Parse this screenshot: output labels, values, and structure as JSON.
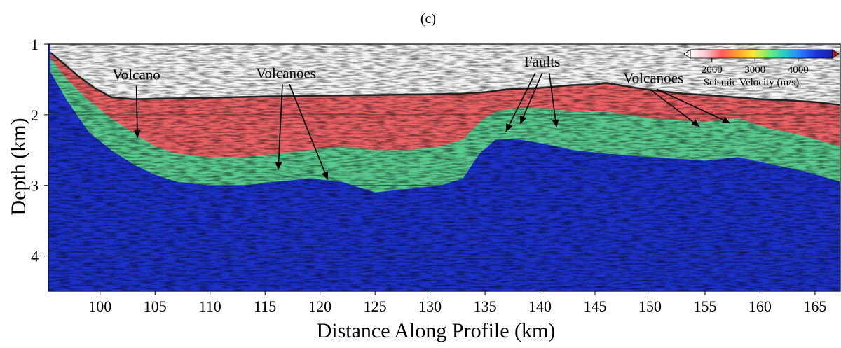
{
  "panel_label": "(c)",
  "chart_data": {
    "type": "heatmap",
    "title": "",
    "xlabel": "Distance Along Profile (km)",
    "ylabel": "Depth (km)",
    "xlim": [
      95.3,
      167.3
    ],
    "ylim": [
      4.5,
      1.0
    ],
    "x_ticks": [
      100,
      105,
      110,
      115,
      120,
      125,
      130,
      135,
      140,
      145,
      150,
      155,
      160,
      165
    ],
    "y_ticks": [
      1,
      2,
      3,
      4
    ],
    "gridlines_y": [
      2,
      3,
      4
    ],
    "grid": "horizontal lines at depth ticks",
    "colorbar": {
      "label": "Seismic Velocity (m/s)",
      "ticks": [
        2000,
        3000,
        4000
      ],
      "range": [
        1500,
        4800
      ],
      "colors": [
        "#ffffff",
        "#f7c6d2",
        "#ff5a5a",
        "#ffa030",
        "#ffe63c",
        "#6cf07a",
        "#28c8c8",
        "#2c78ff",
        "#1e32d2",
        "#141eaa"
      ],
      "placement": "top-right"
    },
    "seafloor_profile": {
      "x": [
        95.5,
        96.5,
        98,
        99.5,
        101,
        103,
        106,
        110,
        115,
        120,
        125,
        130,
        133,
        135,
        137,
        140,
        143,
        145,
        146,
        148,
        150,
        153,
        156,
        160,
        163,
        165,
        167.3
      ],
      "depth": [
        1.12,
        1.25,
        1.45,
        1.62,
        1.75,
        1.78,
        1.77,
        1.76,
        1.74,
        1.73,
        1.72,
        1.71,
        1.7,
        1.68,
        1.64,
        1.62,
        1.58,
        1.57,
        1.55,
        1.6,
        1.65,
        1.7,
        1.73,
        1.78,
        1.8,
        1.82,
        1.86
      ]
    },
    "velocity_boundaries": {
      "x": [
        95.5,
        97,
        99,
        101,
        103,
        105,
        107,
        110,
        113,
        116,
        119,
        122,
        125,
        128,
        131,
        133,
        134.5,
        136,
        138,
        140,
        143,
        146,
        150,
        155,
        158,
        161,
        164,
        167.3
      ],
      "v2500_depth": [
        1.2,
        1.5,
        1.8,
        2.05,
        2.25,
        2.45,
        2.55,
        2.6,
        2.6,
        2.55,
        2.5,
        2.45,
        2.5,
        2.5,
        2.45,
        2.35,
        2.1,
        1.95,
        1.9,
        1.9,
        1.95,
        1.95,
        2.05,
        2.1,
        2.05,
        2.2,
        2.3,
        2.45
      ],
      "v3500_depth": [
        1.4,
        1.8,
        2.25,
        2.5,
        2.7,
        2.85,
        2.95,
        3.0,
        3.0,
        2.95,
        2.9,
        2.95,
        3.1,
        3.05,
        3.0,
        2.9,
        2.55,
        2.35,
        2.35,
        2.4,
        2.5,
        2.55,
        2.6,
        2.65,
        2.6,
        2.7,
        2.8,
        2.95
      ]
    },
    "annotations": [
      {
        "text": "Volcano",
        "x": 103.3,
        "y": 1.43,
        "arrows": [
          [
            103.4,
            2.33
          ]
        ]
      },
      {
        "text": "Volcanoes",
        "x": 116.9,
        "y": 1.41,
        "arrows": [
          [
            116.2,
            2.78
          ],
          [
            120.7,
            2.92
          ]
        ]
      },
      {
        "text": "Faults",
        "x": 140.2,
        "y": 1.25,
        "arrows": [
          [
            136.9,
            2.24
          ],
          [
            138.2,
            2.13
          ],
          [
            141.5,
            2.18
          ]
        ]
      },
      {
        "text": "Volcanoes",
        "x": 150.3,
        "y": 1.48,
        "arrows": [
          [
            154.5,
            2.17
          ],
          [
            157.3,
            2.12
          ]
        ]
      }
    ]
  }
}
